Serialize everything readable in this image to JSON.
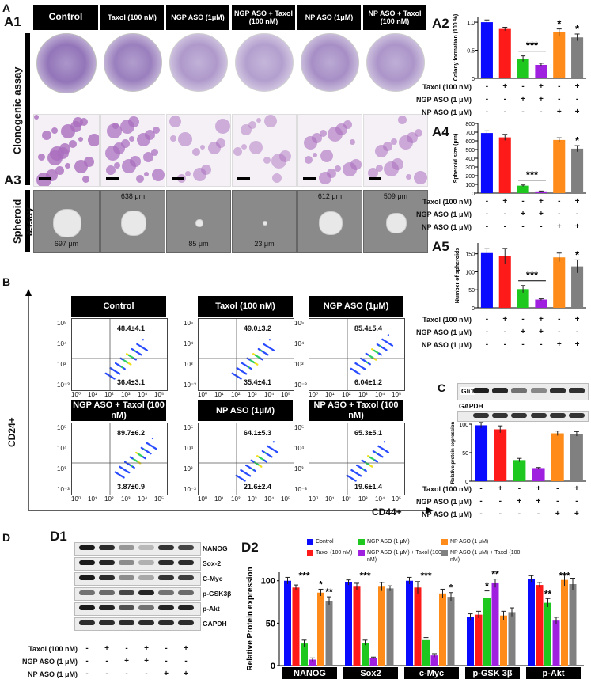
{
  "panel_letters": {
    "a": "A",
    "b": "B",
    "c": "C",
    "d": "D"
  },
  "sub_letters": {
    "a1": "A1",
    "a2": "A2",
    "a3": "A3",
    "a4": "A4",
    "a5": "A5",
    "d1": "D1",
    "d2": "D2"
  },
  "column_headers": [
    "Control",
    "Taxol (100 nM)",
    "NGP ASO (1μM)",
    "NGP ASO + Taxol (100 nM)",
    "NP ASO (1μM)",
    "NP ASO + Taxol (100 nM)"
  ],
  "row_labels": {
    "clonogenic": "Clonogenic assay",
    "spheroid": "Spheroid assay"
  },
  "spheroid_sizes": [
    "697 μm",
    "638 μm",
    "85 μm",
    "23 μm",
    "612 μm",
    "509 μm"
  ],
  "flow": {
    "y_axis": "CD24+",
    "x_axis": "CD44+",
    "plots": [
      {
        "title": "Control",
        "upper": "48.4±4.1",
        "lower": "36.4±3.1"
      },
      {
        "title": "Taxol (100 nM)",
        "upper": "49.0±3.2",
        "lower": "35.4±4.1"
      },
      {
        "title": "NGP ASO (1μM)",
        "upper": "85.4±5.4",
        "lower": "6.04±1.2"
      },
      {
        "title": "NGP ASO + Taxol (100 nM)",
        "upper": "89.7±6.2",
        "lower": "3.87±0.9"
      },
      {
        "title": "NP ASO (1μM)",
        "upper": "64.1±5.3",
        "lower": "21.6±2.4"
      },
      {
        "title": "NP ASO + Taxol (100 nM)",
        "upper": "65.3±5.1",
        "lower": "19.6±1.4"
      }
    ],
    "ticks": [
      "10⁰",
      "10¹",
      "10²",
      "10³",
      "10⁴",
      "10⁵"
    ],
    "yticks": [
      "10⁵",
      "10⁴",
      "10³",
      "10²",
      "10¹",
      "10⁰",
      "10⁻³"
    ]
  },
  "conditions": {
    "labels": [
      "Taxol (100 nM)",
      "NGP ASO (1 μM)",
      "NP ASO (1 μM)"
    ],
    "marks": [
      [
        "-",
        "+",
        "-",
        "+",
        "-",
        "+"
      ],
      [
        "-",
        "-",
        "+",
        "+",
        "-",
        "-"
      ],
      [
        "-",
        "-",
        "-",
        "-",
        "+",
        "+"
      ]
    ]
  },
  "blots_c": {
    "rows": [
      "Gli1",
      "GAPDH"
    ]
  },
  "blots_d1": {
    "rows": [
      "NANOG",
      "Sox-2",
      "C-Myc",
      "p-GSK3β",
      "p-Akt",
      "GAPDH"
    ]
  },
  "colors": {
    "control": "#0a0aff",
    "taxol": "#ff1a1a",
    "ngp": "#1ec81e",
    "ngp_taxol": "#a020e0",
    "np": "#ff8c1a",
    "np_taxol": "#808080"
  },
  "chart_data": [
    {
      "id": "A2",
      "type": "bar",
      "categories": [
        "1",
        "2",
        "3",
        "4",
        "5",
        "6"
      ],
      "values": [
        1.0,
        0.88,
        0.35,
        0.24,
        0.82,
        0.73
      ],
      "errors": [
        0.04,
        0.03,
        0.05,
        0.03,
        0.06,
        0.06
      ],
      "ylabel": "Colony formation (100 %)",
      "ylim": [
        0,
        1.1
      ],
      "yticks": [
        "0",
        "0.5",
        "1.0"
      ],
      "yticks_v": [
        0,
        0.5,
        1.0
      ],
      "stars": [
        {
          "i": 2,
          "t": "***",
          "bar": true
        },
        {
          "i": 4,
          "t": "*"
        },
        {
          "i": 5,
          "t": "*"
        }
      ]
    },
    {
      "id": "A4",
      "type": "bar",
      "categories": [
        "1",
        "2",
        "3",
        "4",
        "5",
        "6"
      ],
      "values": [
        690,
        640,
        85,
        20,
        610,
        510
      ],
      "errors": [
        25,
        35,
        8,
        4,
        25,
        35
      ],
      "ylabel": "Spheroid size (μm)",
      "ylim": [
        0,
        800
      ],
      "yticks": [
        "0",
        "100",
        "200",
        "300",
        "400",
        "500",
        "600",
        "700",
        "800"
      ],
      "yticks_v": [
        0,
        100,
        200,
        300,
        400,
        500,
        600,
        700,
        800
      ],
      "stars": [
        {
          "i": 2,
          "t": "***",
          "bar": true
        },
        {
          "i": 5,
          "t": "*"
        }
      ]
    },
    {
      "id": "A5",
      "type": "bar",
      "categories": [
        "1",
        "2",
        "3",
        "4",
        "5",
        "6"
      ],
      "values": [
        152,
        143,
        52,
        23,
        140,
        115
      ],
      "errors": [
        12,
        22,
        10,
        2,
        12,
        18
      ],
      "ylabel": "Number of spheroids",
      "ylim": [
        0,
        180
      ],
      "yticks": [
        "0",
        "50",
        "100",
        "150"
      ],
      "yticks_v": [
        0,
        50,
        100,
        150
      ],
      "stars": [
        {
          "i": 2,
          "t": "***",
          "bar": true
        },
        {
          "i": 5,
          "t": "*"
        }
      ]
    },
    {
      "id": "C",
      "type": "bar",
      "categories": [
        "1",
        "2",
        "3",
        "4",
        "5",
        "6"
      ],
      "values": [
        98,
        91,
        37,
        23,
        84,
        83
      ],
      "errors": [
        5,
        6,
        3,
        1,
        4,
        4
      ],
      "ylabel": "Relative protein expression",
      "ylim": [
        0,
        100
      ],
      "yticks": [
        "0",
        "50",
        "100"
      ],
      "yticks_v": [
        0,
        50,
        100
      ],
      "stars": []
    },
    {
      "id": "D2",
      "type": "bar",
      "ylabel": "Relative Protein expression",
      "ylim": [
        0,
        110
      ],
      "yticks": [
        "0",
        "50",
        "100"
      ],
      "yticks_v": [
        0,
        50,
        100
      ],
      "categories": [
        "NANOG",
        "Sox2",
        "c-Myc",
        "p-GSK 3β",
        "p-Akt"
      ],
      "series": [
        {
          "name": "Control",
          "values": [
            100,
            98,
            100,
            57,
            102
          ],
          "errors": [
            4,
            3,
            4,
            4,
            4
          ]
        },
        {
          "name": "Taxol (100 nM)",
          "values": [
            92,
            93,
            92,
            60,
            95
          ],
          "errors": [
            3,
            4,
            7,
            4,
            3
          ]
        },
        {
          "name": "NGP ASO (1 μM)",
          "values": [
            26,
            27,
            30,
            80,
            74
          ],
          "errors": [
            4,
            3,
            3,
            8,
            5
          ]
        },
        {
          "name": "NGP ASO (1 μM) + Taxol (100 nM)",
          "values": [
            7,
            9,
            12,
            97,
            53
          ],
          "errors": [
            2,
            1,
            2,
            5,
            4
          ]
        },
        {
          "name": "NP ASO (1 μM)",
          "values": [
            86,
            93,
            85,
            59,
            101
          ],
          "errors": [
            4,
            5,
            5,
            5,
            7
          ]
        },
        {
          "name": "NP ASO (1 μM) + Taxol (100 nM)",
          "values": [
            76,
            91,
            81,
            63,
            96
          ],
          "errors": [
            5,
            3,
            5,
            5,
            7
          ]
        }
      ],
      "annotations": [
        "***",
        "*",
        "**",
        "***",
        "***",
        "*",
        "*",
        "**",
        "**",
        "***"
      ]
    }
  ]
}
